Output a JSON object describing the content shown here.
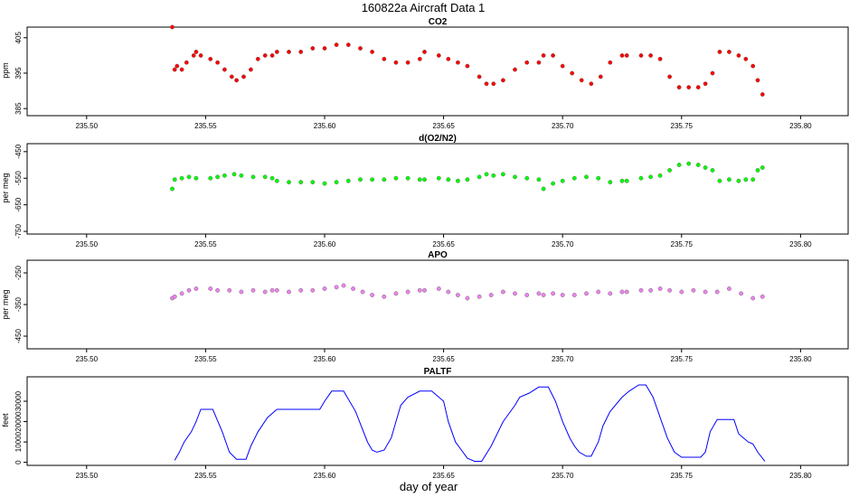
{
  "figure": {
    "title": "160822a    Aircraft Data 1",
    "xlabel": "day of year"
  },
  "chart_data": [
    {
      "type": "scatter",
      "title": "CO2",
      "ylabel": "ppm",
      "xlim": [
        235.475,
        235.82
      ],
      "ylim": [
        383,
        408
      ],
      "yticks": [
        385,
        395,
        405
      ],
      "xticks": [
        "235.50",
        "235.55",
        "235.60",
        "235.65",
        "235.70",
        "235.75",
        "235.80"
      ],
      "color": "#ff0000",
      "series": [
        {
          "x": [
            235.536,
            235.537,
            235.538,
            235.54,
            235.542,
            235.545,
            235.546,
            235.548,
            235.552,
            235.555,
            235.558,
            235.561,
            235.563,
            235.566,
            235.569,
            235.572,
            235.575,
            235.578,
            235.58,
            235.585,
            235.59,
            235.595,
            235.6,
            235.605,
            235.61,
            235.615,
            235.62,
            235.625,
            235.63,
            235.635,
            235.64,
            235.642,
            235.648,
            235.652,
            235.656,
            235.66,
            235.665,
            235.668,
            235.671,
            235.675,
            235.68,
            235.685,
            235.69,
            235.692,
            235.696,
            235.7,
            235.704,
            235.708,
            235.712,
            235.716,
            235.72,
            235.725,
            235.727,
            235.733,
            235.737,
            235.741,
            235.745,
            235.749,
            235.753,
            235.757,
            235.76,
            235.763,
            235.766,
            235.77,
            235.774,
            235.777,
            235.78,
            235.782,
            235.784
          ],
          "y": [
            408,
            396,
            397,
            396,
            398,
            400,
            401,
            400,
            399,
            398,
            396,
            394,
            393,
            394,
            396,
            399,
            400,
            400,
            401,
            401,
            401,
            402,
            402,
            403,
            403,
            402,
            401,
            399,
            398,
            398,
            399,
            401,
            400,
            399,
            398,
            397,
            394,
            392,
            392,
            393,
            396,
            398,
            398,
            400,
            400,
            397,
            395,
            393,
            392,
            394,
            398,
            400,
            400,
            400,
            400,
            399,
            394,
            391,
            391,
            391,
            392,
            395,
            401,
            401,
            400,
            399,
            397,
            393,
            389
          ]
        }
      ]
    },
    {
      "type": "scatter",
      "title": "d(O2/N2)",
      "ylabel": "per meg",
      "xlim": [
        235.475,
        235.82
      ],
      "ylim": [
        -760,
        -420
      ],
      "yticks": [
        -450,
        -550,
        -650,
        -750
      ],
      "xticks": [
        "235.50",
        "235.55",
        "235.60",
        "235.65",
        "235.70",
        "235.75",
        "235.80"
      ],
      "color": "#00ff00",
      "series": [
        {
          "x": [
            235.536,
            235.537,
            235.54,
            235.543,
            235.546,
            235.552,
            235.555,
            235.558,
            235.562,
            235.565,
            235.57,
            235.575,
            235.578,
            235.58,
            235.585,
            235.59,
            235.595,
            235.6,
            235.605,
            235.61,
            235.615,
            235.62,
            235.625,
            235.63,
            235.635,
            235.64,
            235.642,
            235.648,
            235.652,
            235.656,
            235.66,
            235.665,
            235.668,
            235.671,
            235.675,
            235.68,
            235.685,
            235.69,
            235.692,
            235.696,
            235.7,
            235.705,
            235.71,
            235.715,
            235.72,
            235.725,
            235.727,
            235.733,
            235.737,
            235.741,
            235.745,
            235.749,
            235.753,
            235.757,
            235.76,
            235.763,
            235.766,
            235.77,
            235.774,
            235.777,
            235.78,
            235.782,
            235.784
          ],
          "y": [
            -590,
            -555,
            -550,
            -545,
            -550,
            -550,
            -545,
            -540,
            -535,
            -540,
            -545,
            -545,
            -550,
            -560,
            -565,
            -565,
            -565,
            -570,
            -565,
            -560,
            -555,
            -555,
            -555,
            -550,
            -550,
            -555,
            -555,
            -550,
            -555,
            -560,
            -555,
            -545,
            -535,
            -540,
            -535,
            -545,
            -550,
            -555,
            -590,
            -570,
            -560,
            -550,
            -545,
            -550,
            -565,
            -560,
            -560,
            -550,
            -545,
            -540,
            -520,
            -500,
            -495,
            -500,
            -510,
            -520,
            -560,
            -555,
            -560,
            -555,
            -555,
            -520,
            -510
          ]
        }
      ]
    },
    {
      "type": "scatter",
      "title": "APO",
      "ylabel": "per meg",
      "xlim": [
        235.475,
        235.82
      ],
      "ylim": [
        -490,
        -210
      ],
      "yticks": [
        -250,
        -350,
        -450
      ],
      "xticks": [
        "235.50",
        "235.55",
        "235.60",
        "235.65",
        "235.70",
        "235.75",
        "235.80"
      ],
      "color": "#ee82ee",
      "series": [
        {
          "x": [
            235.536,
            235.537,
            235.54,
            235.543,
            235.546,
            235.552,
            235.555,
            235.56,
            235.565,
            235.57,
            235.575,
            235.578,
            235.58,
            235.585,
            235.59,
            235.595,
            235.6,
            235.605,
            235.608,
            235.612,
            235.616,
            235.62,
            235.625,
            235.63,
            235.635,
            235.64,
            235.642,
            235.648,
            235.652,
            235.656,
            235.66,
            235.665,
            235.67,
            235.675,
            235.68,
            235.685,
            235.69,
            235.692,
            235.696,
            235.7,
            235.705,
            235.71,
            235.715,
            235.72,
            235.725,
            235.727,
            235.733,
            235.737,
            235.741,
            235.745,
            235.75,
            235.755,
            235.76,
            235.765,
            235.77,
            235.775,
            235.78,
            235.784
          ],
          "y": [
            -330,
            -325,
            -315,
            -305,
            -300,
            -300,
            -305,
            -305,
            -310,
            -305,
            -310,
            -305,
            -305,
            -310,
            -305,
            -305,
            -300,
            -295,
            -290,
            -300,
            -310,
            -320,
            -325,
            -315,
            -310,
            -305,
            -305,
            -300,
            -310,
            -320,
            -330,
            -325,
            -320,
            -310,
            -315,
            -320,
            -315,
            -320,
            -315,
            -320,
            -320,
            -315,
            -310,
            -315,
            -310,
            -310,
            -305,
            -305,
            -300,
            -305,
            -310,
            -305,
            -310,
            -310,
            -300,
            -315,
            -330,
            -325
          ]
        }
      ]
    },
    {
      "type": "line",
      "title": "PALTF",
      "ylabel": "feet",
      "xlim": [
        235.475,
        235.82
      ],
      "ylim": [
        -1500,
        42000
      ],
      "yticks": [
        0,
        10000,
        20000,
        30000
      ],
      "xticks": [
        "235.50",
        "235.55",
        "235.60",
        "235.65",
        "235.70",
        "235.75",
        "235.80"
      ],
      "color": "#0000ff",
      "series": [
        {
          "x": [
            235.537,
            235.539,
            235.541,
            235.544,
            235.546,
            235.548,
            235.553,
            235.557,
            235.56,
            235.563,
            235.567,
            235.569,
            235.572,
            235.576,
            235.58,
            235.585,
            235.59,
            235.595,
            235.598,
            235.6,
            235.603,
            235.607,
            235.608,
            235.613,
            235.618,
            235.62,
            235.622,
            235.625,
            235.628,
            235.63,
            235.632,
            235.635,
            235.64,
            235.642,
            235.645,
            235.65,
            235.652,
            235.655,
            235.66,
            235.663,
            235.666,
            235.67,
            235.675,
            235.68,
            235.682,
            235.686,
            235.69,
            235.692,
            235.694,
            235.697,
            235.7,
            235.703,
            235.705,
            235.707,
            235.71,
            235.712,
            235.715,
            235.717,
            235.72,
            235.725,
            235.728,
            235.732,
            235.735,
            235.738,
            235.741,
            235.744,
            235.747,
            235.75,
            235.755,
            235.758,
            235.76,
            235.762,
            235.765,
            235.768,
            235.77,
            235.772,
            235.774,
            235.776,
            235.778,
            235.78,
            235.782,
            235.785
          ],
          "y": [
            1000,
            5000,
            10000,
            15000,
            20000,
            26000,
            26000,
            15000,
            5000,
            1500,
            1500,
            8000,
            15000,
            22000,
            26000,
            26000,
            26000,
            26000,
            26000,
            30000,
            35000,
            35000,
            35000,
            25000,
            10000,
            6000,
            5000,
            6000,
            12000,
            20000,
            28000,
            32000,
            35000,
            35000,
            35000,
            30000,
            20000,
            10000,
            2000,
            500,
            500,
            8000,
            20000,
            28000,
            32000,
            34000,
            37000,
            37000,
            37000,
            30000,
            20000,
            12000,
            8000,
            5000,
            3000,
            3000,
            10000,
            18000,
            25000,
            32000,
            35000,
            38000,
            38000,
            32000,
            22000,
            12000,
            5000,
            2500,
            2500,
            2500,
            5000,
            15000,
            21000,
            21000,
            21000,
            21000,
            14000,
            12000,
            10000,
            9000,
            5000,
            500
          ]
        }
      ]
    }
  ]
}
